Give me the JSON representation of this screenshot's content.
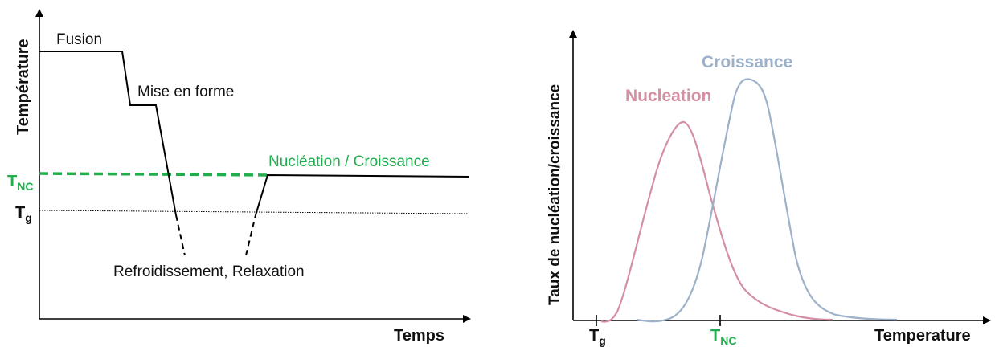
{
  "left_diagram": {
    "y_axis_title": "Température",
    "x_axis_title": "Temps",
    "labels": {
      "fusion": "Fusion",
      "shaping": "Mise en forme",
      "nucleation_growth": "Nucléation / Croissance",
      "cooling_relaxation": "Refroidissement, Relaxation"
    },
    "t_nc": {
      "main": "T",
      "sub": "NC"
    },
    "t_g": {
      "main": "T",
      "sub": "g"
    },
    "colors": {
      "line": "#000000",
      "t_nc_line": "#1fae4b",
      "t_nc_text": "#1fae4b"
    }
  },
  "right_diagram": {
    "y_axis_title": "Taux de nucléation/croissance",
    "x_axis_title": "Temperature",
    "series": [
      {
        "name": "Nucleation",
        "color": "#d48fa3"
      },
      {
        "name": "Croissance",
        "color": "#9db1c9"
      }
    ],
    "t_g": {
      "main": "T",
      "sub": "g"
    },
    "t_nc": {
      "main": "T",
      "sub": "NC"
    },
    "colors": {
      "t_nc_text": "#1fae4b"
    }
  }
}
